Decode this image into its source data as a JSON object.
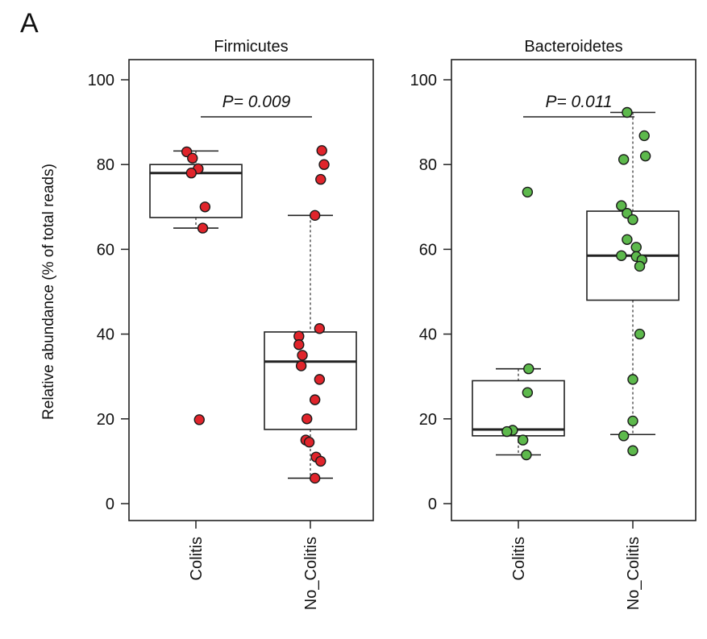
{
  "panel_label": "A",
  "y_axis_label": "Relative abundance (% of total reads)",
  "colors": {
    "firmicutes_point": "#e0242b",
    "bacteroidetes_point": "#5db94c",
    "box_stroke": "#222222"
  },
  "chart_data": [
    {
      "type": "box",
      "title": "Firmicutes",
      "ylabel": "Relative abundance (% of total reads)",
      "ylim": [
        0,
        100
      ],
      "yticks": [
        0,
        20,
        40,
        60,
        80,
        100
      ],
      "categories": [
        "Colitis",
        "No_Colitis"
      ],
      "p_value_label": "P= 0.009",
      "boxes": [
        {
          "category": "Colitis",
          "q1": 67.5,
          "median": 78,
          "q3": 80,
          "whisker_low": 65,
          "whisker_high": 83.2
        },
        {
          "category": "No_Colitis",
          "q1": 17.5,
          "median": 33.5,
          "q3": 40.5,
          "whisker_low": 6,
          "whisker_high": 68
        }
      ],
      "points": [
        {
          "category": "Colitis",
          "values": [
            83,
            81.5,
            79,
            78,
            70,
            65,
            19.8
          ],
          "jitter": [
            -0.08,
            -0.03,
            0.02,
            -0.04,
            0.08,
            0.06,
            0.03
          ]
        },
        {
          "category": "No_Colitis",
          "values": [
            83.3,
            80,
            76.5,
            68,
            41.3,
            39.5,
            37.5,
            35,
            32.5,
            29.3,
            24.5,
            20,
            15,
            14.5,
            11,
            10,
            6
          ],
          "jitter": [
            0.1,
            0.12,
            0.09,
            0.04,
            0.08,
            -0.1,
            -0.1,
            -0.07,
            -0.08,
            0.08,
            0.04,
            -0.03,
            -0.04,
            -0.01,
            0.05,
            0.09,
            0.04
          ]
        }
      ]
    },
    {
      "type": "box",
      "title": "Bacteroidetes",
      "ylim": [
        0,
        100
      ],
      "yticks": [
        0,
        20,
        40,
        60,
        80,
        100
      ],
      "categories": [
        "Colitis",
        "No_Colitis"
      ],
      "p_value_label": "P= 0.011",
      "boxes": [
        {
          "category": "Colitis",
          "q1": 16,
          "median": 17.5,
          "q3": 29,
          "whisker_low": 11.5,
          "whisker_high": 31.8
        },
        {
          "category": "No_Colitis",
          "q1": 48,
          "median": 58.5,
          "q3": 69,
          "whisker_low": 16.3,
          "whisker_high": 92.3
        }
      ],
      "points": [
        {
          "category": "Colitis",
          "values": [
            73.5,
            31.8,
            26.2,
            17.3,
            17,
            15,
            11.5
          ],
          "jitter": [
            0.08,
            0.09,
            0.08,
            -0.05,
            -0.1,
            0.04,
            0.07
          ]
        },
        {
          "category": "No_Colitis",
          "values": [
            92.3,
            86.8,
            82,
            81.2,
            70.3,
            68.5,
            67,
            62.3,
            60.5,
            58.5,
            58.3,
            57.5,
            56,
            40,
            29.3,
            19.5,
            16,
            12.5
          ],
          "jitter": [
            -0.05,
            0.1,
            0.11,
            -0.08,
            -0.1,
            -0.05,
            0,
            -0.05,
            0.03,
            -0.1,
            0.03,
            0.08,
            0.06,
            0.06,
            0,
            0,
            -0.08,
            0
          ]
        }
      ]
    }
  ]
}
